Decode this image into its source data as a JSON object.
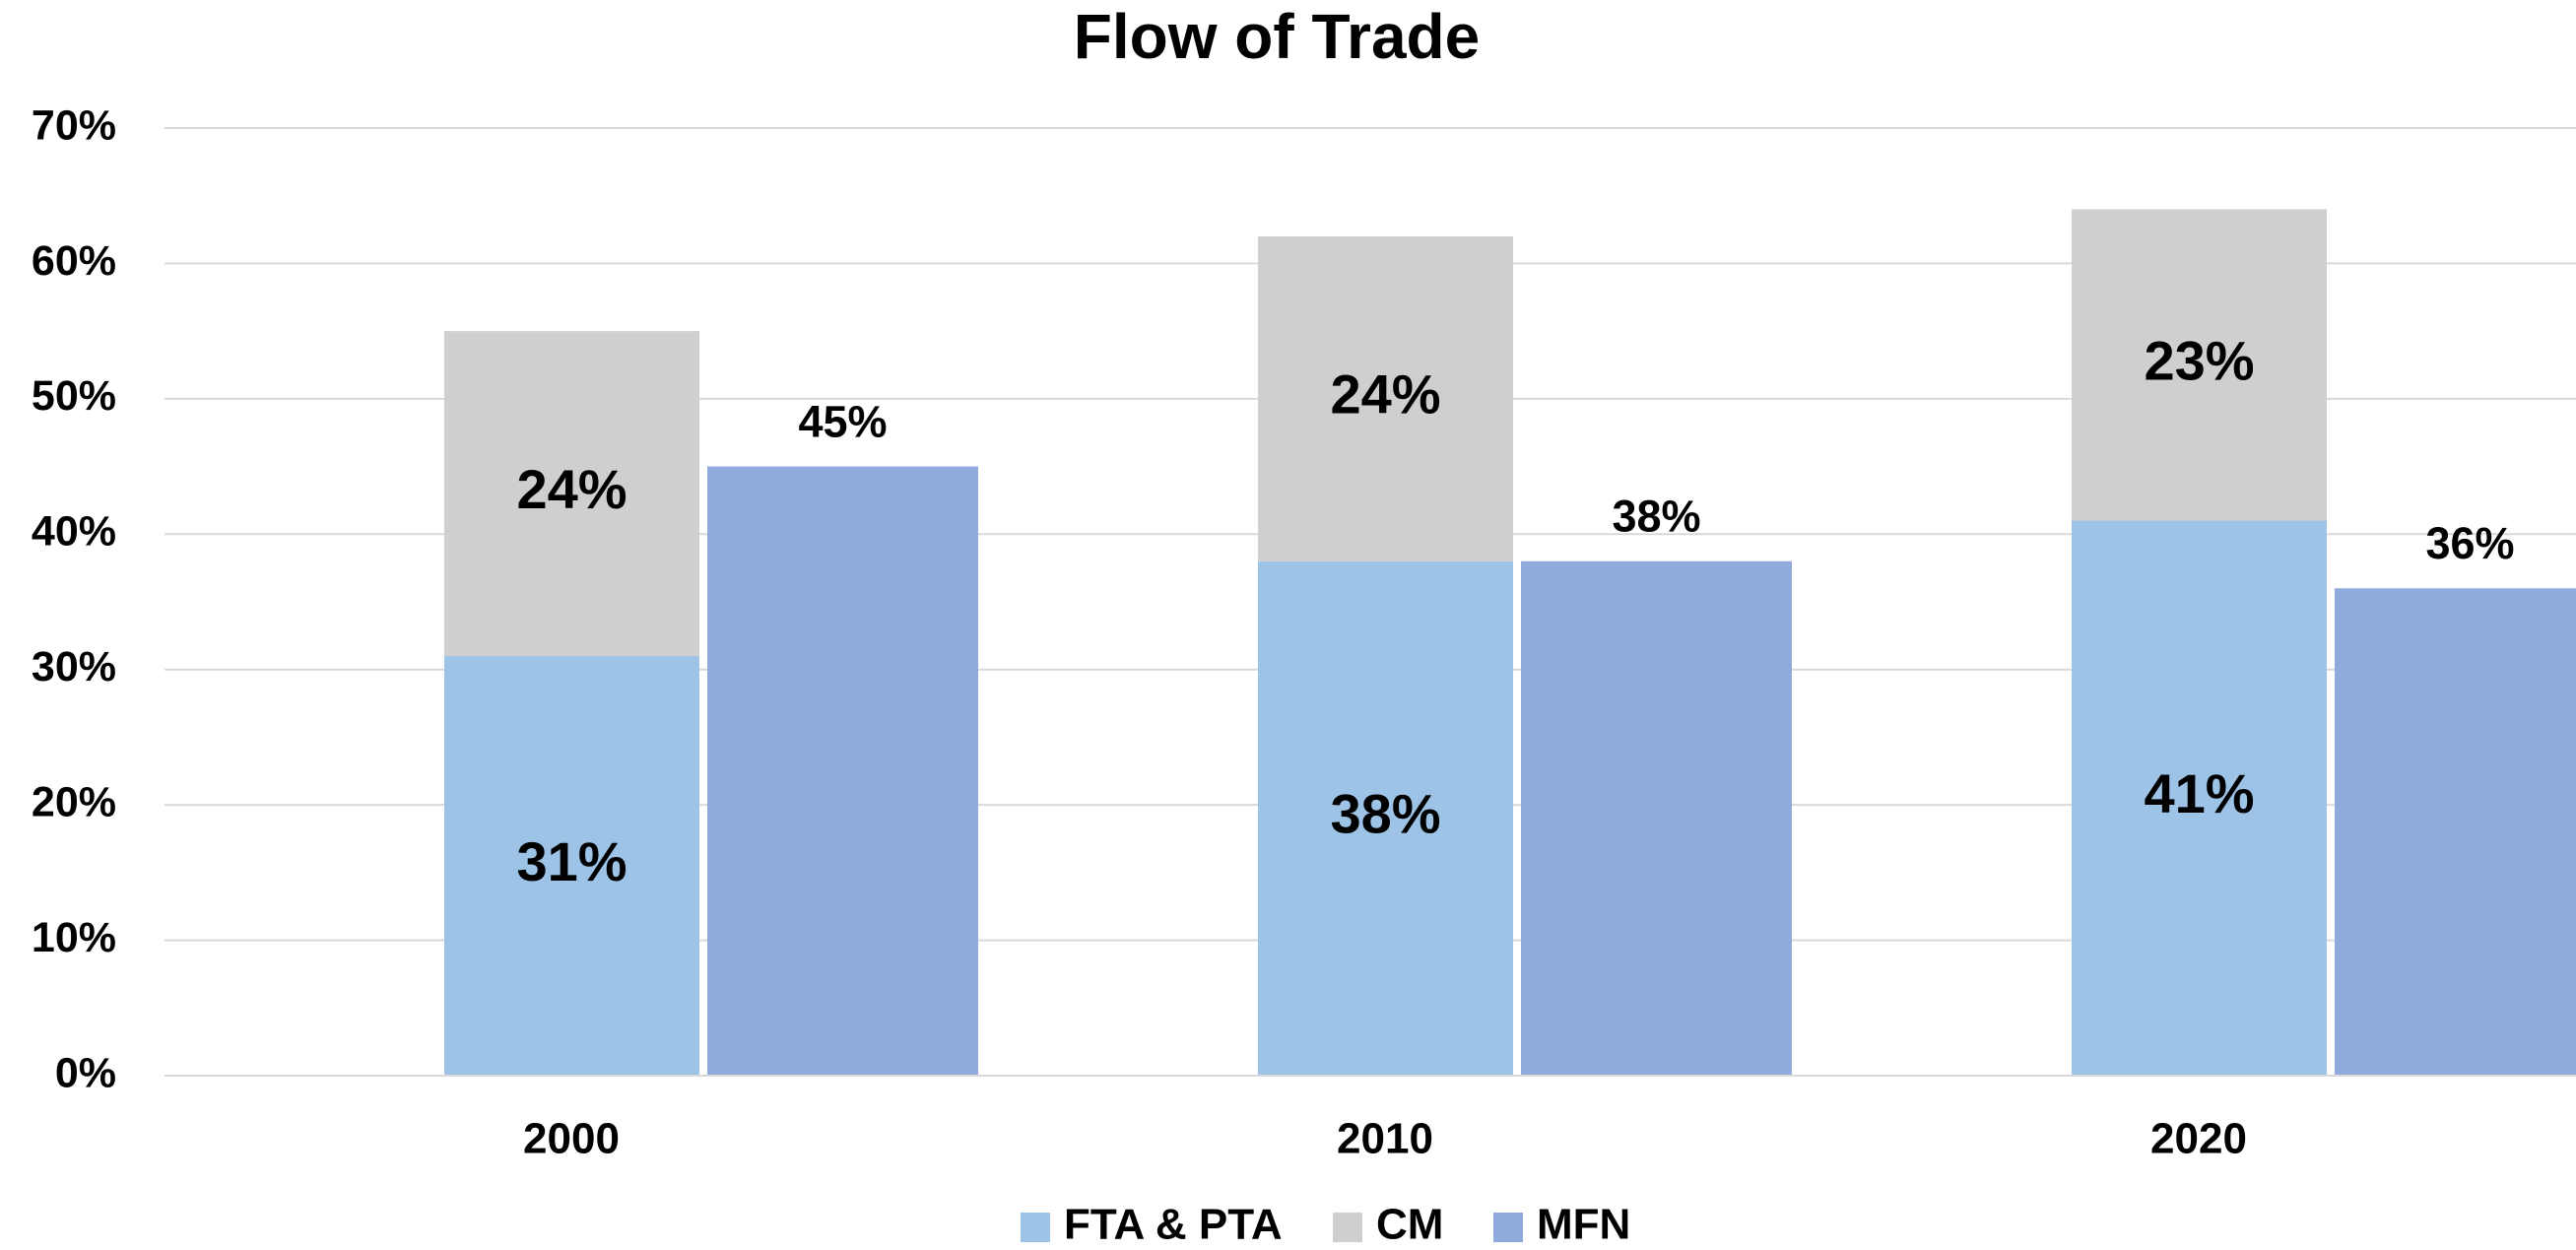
{
  "chart_data": {
    "type": "bar",
    "title": "Flow of Trade",
    "categories": [
      "2000",
      "2010",
      "2020"
    ],
    "series": [
      {
        "name": "FTA & PTA",
        "color": "#9dc3e6",
        "stack": 0,
        "values": [
          31,
          38,
          41
        ],
        "value_labels": [
          "31%",
          "38%",
          "41%"
        ]
      },
      {
        "name": "CM",
        "color": "#d0cece",
        "stack": 0,
        "values": [
          24,
          24,
          23
        ],
        "value_labels": [
          "24%",
          "24%",
          "23%"
        ]
      },
      {
        "name": "MFN",
        "color": "#8faadc",
        "stack": 1,
        "values": [
          45,
          38,
          36
        ],
        "value_labels": [
          "45%",
          "38%",
          "36%"
        ]
      }
    ],
    "ylim": [
      0,
      70
    ],
    "yticks": [
      {
        "value": 0,
        "label": "0%"
      },
      {
        "value": 10,
        "label": "10%"
      },
      {
        "value": 20,
        "label": "20%"
      },
      {
        "value": 30,
        "label": "30%"
      },
      {
        "value": 40,
        "label": "40%"
      },
      {
        "value": 50,
        "label": "50%"
      },
      {
        "value": 60,
        "label": "60%"
      },
      {
        "value": 70,
        "label": "70%"
      }
    ],
    "grid": true,
    "legend": "bottom"
  }
}
